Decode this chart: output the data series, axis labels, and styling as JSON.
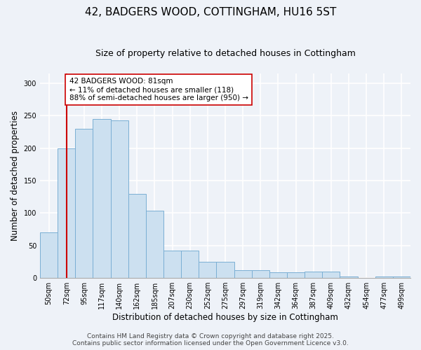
{
  "title": "42, BADGERS WOOD, COTTINGHAM, HU16 5ST",
  "subtitle": "Size of property relative to detached houses in Cottingham",
  "xlabel": "Distribution of detached houses by size in Cottingham",
  "ylabel": "Number of detached properties",
  "bin_labels": [
    "50sqm",
    "72sqm",
    "95sqm",
    "117sqm",
    "140sqm",
    "162sqm",
    "185sqm",
    "207sqm",
    "230sqm",
    "252sqm",
    "275sqm",
    "297sqm",
    "319sqm",
    "342sqm",
    "364sqm",
    "387sqm",
    "409sqm",
    "432sqm",
    "454sqm",
    "477sqm",
    "499sqm"
  ],
  "bar_values": [
    70,
    200,
    230,
    245,
    243,
    130,
    104,
    42,
    42,
    25,
    25,
    12,
    12,
    9,
    9,
    10,
    10,
    2,
    0,
    2,
    2
  ],
  "bar_color": "#cce0f0",
  "bar_edge_color": "#7aafd4",
  "vline_x_index": 1,
  "vline_color": "#cc0000",
  "annotation_text": "42 BADGERS WOOD: 81sqm\n← 11% of detached houses are smaller (118)\n88% of semi-detached houses are larger (950) →",
  "annotation_box_color": "#ffffff",
  "annotation_box_edge": "#cc0000",
  "ylim": [
    0,
    315
  ],
  "yticks": [
    0,
    50,
    100,
    150,
    200,
    250,
    300
  ],
  "background_color": "#eef2f8",
  "grid_color": "#ffffff",
  "footer_line1": "Contains HM Land Registry data © Crown copyright and database right 2025.",
  "footer_line2": "Contains public sector information licensed under the Open Government Licence v3.0.",
  "title_fontsize": 11,
  "subtitle_fontsize": 9,
  "axis_label_fontsize": 8.5,
  "tick_fontsize": 7,
  "annotation_fontsize": 7.5,
  "footer_fontsize": 6.5
}
